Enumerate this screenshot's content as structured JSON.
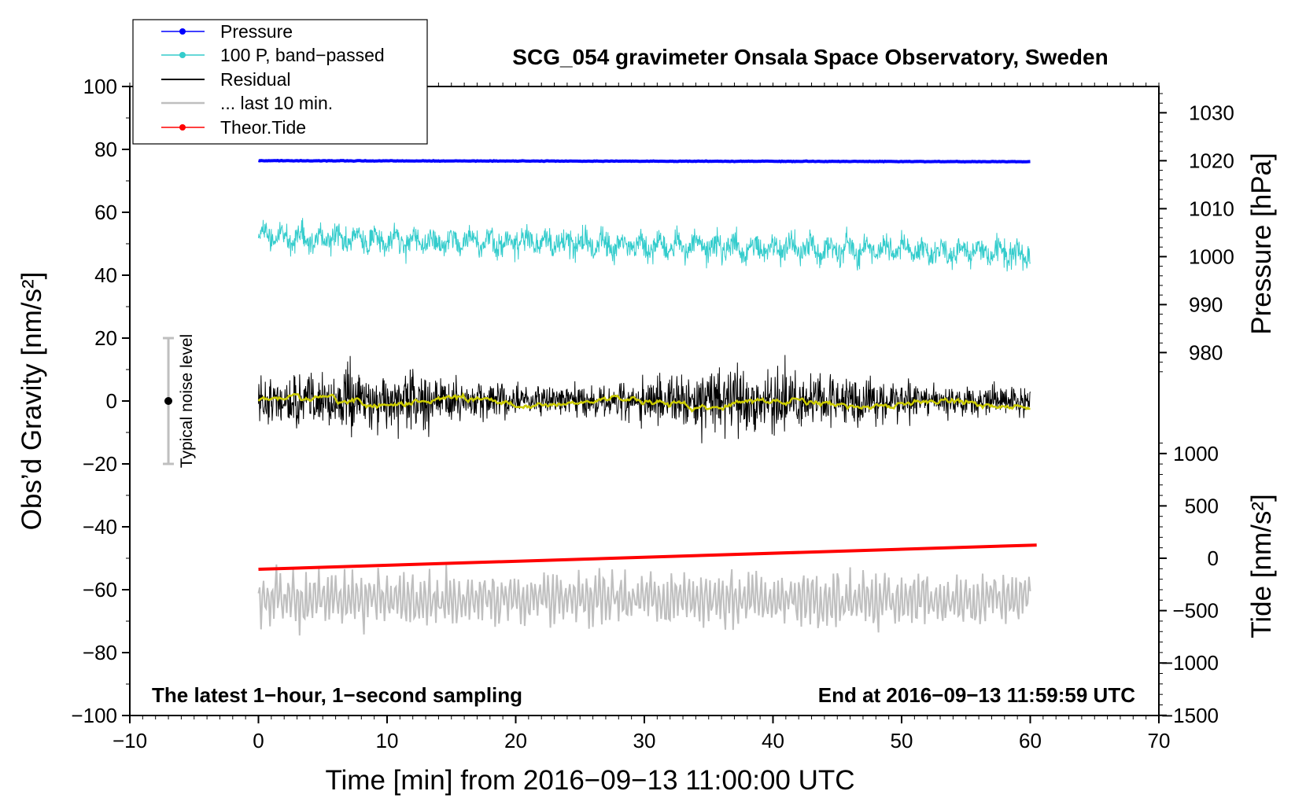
{
  "chart_data": {
    "type": "line",
    "title": "SCG_054 gravimeter Onsala Space Observatory, Sweden",
    "xlabel": "Time [min] from 2016−09−13 11:00:00 UTC",
    "ylabel_left": "Obs’d Gravity [nm/s²]",
    "ylabel_pressure": "Pressure [hPa]",
    "ylabel_tide": "Tide [nm/s²]",
    "xlim": [
      -10,
      70
    ],
    "ylim": [
      -100,
      100
    ],
    "x_ticks": [
      -10,
      0,
      10,
      20,
      30,
      40,
      50,
      60,
      70
    ],
    "x_tick_labels": [
      "−10",
      "0",
      "10",
      "20",
      "30",
      "40",
      "50",
      "60",
      "70"
    ],
    "y_ticks": [
      -100,
      -80,
      -60,
      -40,
      -20,
      0,
      20,
      40,
      60,
      80,
      100
    ],
    "y_tick_labels": [
      "−100",
      "−80",
      "−60",
      "−40",
      "−20",
      "0",
      "20",
      "40",
      "60",
      "80",
      "100"
    ],
    "pressure_axis": {
      "ticks": [
        980,
        990,
        1000,
        1010,
        1020,
        1030
      ],
      "tick_labels": [
        "980",
        "990",
        "1000",
        "1010",
        "1020",
        "1030"
      ],
      "map": {
        "hpa_a": 1020,
        "left_a": 76.4,
        "hpa_b": 980,
        "left_b": 15.4
      }
    },
    "tide_axis": {
      "ticks": [
        -1500,
        -1000,
        -500,
        0,
        500,
        1000
      ],
      "tick_labels": [
        "−1500",
        "−1000",
        "−500",
        "0",
        "500",
        "1000"
      ],
      "map": {
        "tide_a": 0,
        "left_a": -50,
        "tide_b": 1000,
        "left_b": -16.7
      }
    },
    "series": [
      {
        "name": "Pressure",
        "color": "#0000ff",
        "x_range": [
          0,
          60
        ],
        "start": 76.4,
        "end": 76.1,
        "noise": 0.15
      },
      {
        "name": "100 P, band−passed",
        "color": "#33cccc",
        "x_range": [
          0,
          60
        ],
        "start": 52,
        "end": 47,
        "amplitude": 5
      },
      {
        "name": "Residual",
        "color": "#000000",
        "x_range": [
          0,
          60
        ],
        "baseline": 0,
        "amplitude": 12
      },
      {
        "name": "Residual smoothed",
        "color": "#cccc00",
        "x_range": [
          0,
          60
        ],
        "baseline": 0,
        "amplitude": 2
      },
      {
        "name": "... last 10 min.",
        "color": "#bfbfbf",
        "x_range": [
          0,
          60
        ],
        "baseline": -63,
        "amplitude": 13
      },
      {
        "name": "Theor.Tide",
        "color": "#ff0000",
        "x_range": [
          0,
          60.5
        ],
        "start": -53.5,
        "end": -45.8
      }
    ],
    "noise_bar": {
      "label": "Typical noise level",
      "x": -7,
      "center": 0,
      "half_width": 20,
      "color": "#bfbfbf"
    },
    "annotations": {
      "left": "The latest 1−hour, 1−second sampling",
      "right": "End at 2016−09−13 11:59:59 UTC"
    },
    "legend": {
      "placement": "top-left",
      "entries": [
        {
          "label": "Pressure",
          "color": "#0000ff",
          "marker": true
        },
        {
          "label": "100 P, band−passed",
          "color": "#33cccc",
          "marker": true
        },
        {
          "label": "Residual",
          "color": "#000000",
          "marker": false
        },
        {
          "label": "... last 10 min.",
          "color": "#bfbfbf",
          "marker": false
        },
        {
          "label": "Theor.Tide",
          "color": "#ff0000",
          "marker": true
        }
      ]
    }
  }
}
